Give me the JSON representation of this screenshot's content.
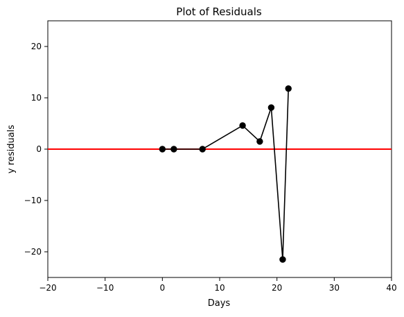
{
  "chart_data": {
    "type": "line",
    "title": "Plot of Residuals",
    "xlabel": "Days",
    "ylabel": "y residuals",
    "xlim": [
      -20,
      40
    ],
    "ylim": [
      -25,
      25
    ],
    "x_ticks": [
      -20,
      -10,
      0,
      10,
      20,
      30,
      40
    ],
    "y_ticks": [
      -20,
      -10,
      0,
      10,
      20
    ],
    "x_tick_labels": [
      "−20",
      "−10",
      "0",
      "10",
      "20",
      "30",
      "40"
    ],
    "y_tick_labels": [
      "−20",
      "−10",
      "0",
      "10",
      "20"
    ],
    "grid": false,
    "legend": "none",
    "series": [
      {
        "type": "line",
        "marker": "circle",
        "color": "#000000",
        "x": [
          0,
          2,
          7,
          14,
          17,
          19,
          21,
          22
        ],
        "y": [
          0.0,
          0.0,
          0.0,
          4.6,
          1.5,
          8.1,
          -21.5,
          11.8
        ]
      }
    ],
    "reference_line": {
      "y": 0,
      "color": "#ff0000"
    }
  }
}
